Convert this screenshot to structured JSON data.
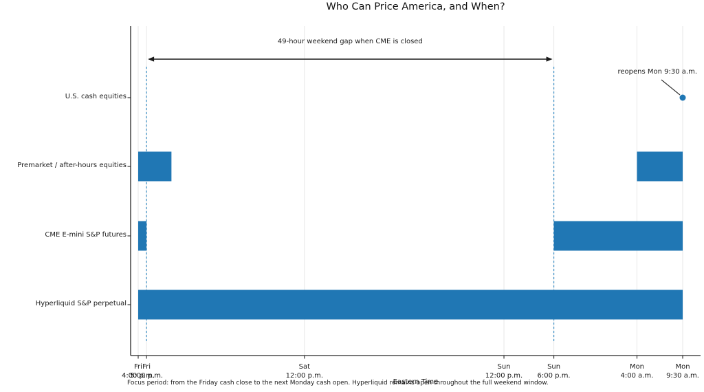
{
  "figure": {
    "title": "Who Can Price America, and When?",
    "xlabel": "Eastern Time",
    "caption": "Focus period: from the Friday cash close to the next Monday cash open. Hyperliquid remains open throughout the full weekend window."
  },
  "annotations": {
    "gap_label": "49-hour weekend gap when CME is closed",
    "reopen_label": "reopens Mon 9:30 a.m."
  },
  "chart_data": {
    "type": "bar",
    "subtype": "horizontal-gantt-timeline",
    "title": "Who Can Price America, and When?",
    "xlabel": "Eastern Time",
    "x_unit": "hours after Fri 4:00 p.m. ET",
    "xlim": [
      0,
      65.5
    ],
    "grid": true,
    "x_ticks": [
      {
        "hour": 0,
        "day": "Fri",
        "time": "4:00 p.m."
      },
      {
        "hour": 1,
        "day": "Fri",
        "time": "5:00 p.m."
      },
      {
        "hour": 20,
        "day": "Sat",
        "time": "12:00 p.m."
      },
      {
        "hour": 44,
        "day": "Sun",
        "time": "12:00 p.m."
      },
      {
        "hour": 50,
        "day": "Sun",
        "time": "6:00 p.m."
      },
      {
        "hour": 60,
        "day": "Mon",
        "time": "4:00 a.m."
      },
      {
        "hour": 65.5,
        "day": "Mon",
        "time": "9:30 a.m."
      }
    ],
    "rows": [
      {
        "label": "U.S. cash equities",
        "bars": [],
        "marker": {
          "hour": 65.5,
          "note": "reopens Mon 9:30 a.m."
        }
      },
      {
        "label": "Premarket / after-hours equities",
        "bars": [
          [
            0,
            4
          ],
          [
            60,
            65.5
          ]
        ]
      },
      {
        "label": "CME E-mini S&P futures",
        "bars": [
          [
            0,
            1
          ],
          [
            50,
            65.5
          ]
        ]
      },
      {
        "label": "Hyperliquid S&P perpetual",
        "bars": [
          [
            0,
            65.5
          ]
        ]
      }
    ],
    "dashed_lines_hours": [
      1,
      50
    ],
    "gap_annotation": {
      "label": "49-hour weekend gap when CME is closed",
      "from_hour": 1,
      "to_hour": 50
    },
    "reopen_annotation": {
      "label": "reopens Mon 9:30 a.m.",
      "row": "U.S. cash equities",
      "hour": 65.5
    },
    "colors": {
      "bar": "#2077b4",
      "dashed": "#3a8ec4",
      "arrow": "#1a1a1a",
      "grid": "#e7e7e7",
      "axis": "#262626"
    }
  }
}
